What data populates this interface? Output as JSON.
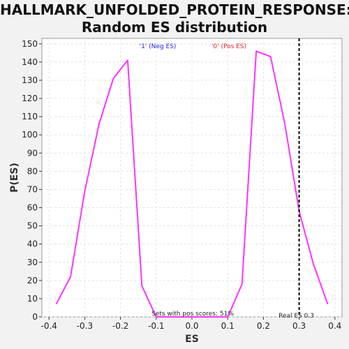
{
  "chart_data": {
    "type": "line",
    "title_line1": "HALLMARK_UNFOLDED_PROTEIN_RESPONSE:",
    "title_line2": "Random ES distribution",
    "xlabel": "ES",
    "ylabel": "P(ES)",
    "xlim": [
      -0.42,
      0.42
    ],
    "ylim": [
      0,
      153
    ],
    "x_ticks": [
      -0.4,
      -0.3,
      -0.2,
      -0.1,
      0.0,
      0.1,
      0.2,
      0.3,
      0.4
    ],
    "x_tick_labels": [
      "-0.4",
      "-0.3",
      "-0.2",
      "-0.1",
      "0.0",
      "0.1",
      "0.2",
      "0.3",
      "0.4"
    ],
    "y_ticks": [
      0,
      10,
      20,
      30,
      40,
      50,
      60,
      70,
      80,
      90,
      100,
      110,
      120,
      130,
      140,
      150
    ],
    "grid": true,
    "series": [
      {
        "color": "#ff33ff",
        "x": [
          -0.38,
          -0.34,
          -0.3,
          -0.26,
          -0.22,
          -0.18,
          -0.14,
          -0.1,
          -0.06,
          -0.02,
          0.02,
          0.06,
          0.1,
          0.14,
          0.18,
          0.22,
          0.26,
          0.3,
          0.34,
          0.38
        ],
        "y": [
          7,
          22,
          69,
          106,
          131,
          141,
          17,
          0,
          0,
          0,
          0,
          0,
          0,
          18,
          146,
          143,
          106,
          58,
          29,
          7
        ]
      }
    ],
    "reference_line": {
      "x": 0.3,
      "label": "Real ES 0.3",
      "color": "#000000",
      "style": "dashed"
    },
    "legend": [
      {
        "label": "'1' (Neg ES)",
        "color": "#2222dd"
      },
      {
        "label": "'0' (Pos ES)",
        "color": "#dd2222"
      }
    ],
    "annotation": "Sets with pos scores: 51%"
  }
}
